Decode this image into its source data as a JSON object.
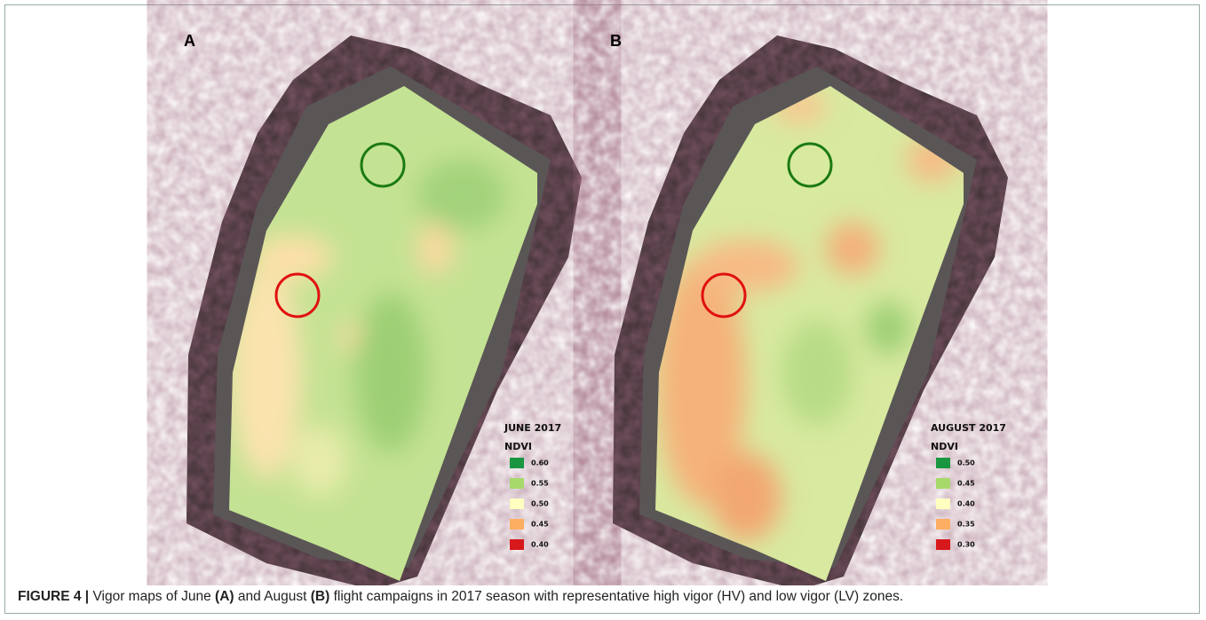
{
  "panels": [
    {
      "label": "A",
      "legend": {
        "title": "JUNE 2017",
        "subtitle": "NDVI",
        "items": [
          {
            "color": "#1a9641",
            "label": "0.60"
          },
          {
            "color": "#a6d96a",
            "label": "0.55"
          },
          {
            "color": "#ffffc0",
            "label": "0.50"
          },
          {
            "color": "#fdae61",
            "label": "0.45"
          },
          {
            "color": "#d7191c",
            "label": "0.40"
          }
        ]
      }
    },
    {
      "label": "B",
      "legend": {
        "title": "AUGUST 2017",
        "subtitle": "NDVI",
        "items": [
          {
            "color": "#1a9641",
            "label": "0.50"
          },
          {
            "color": "#a6d96a",
            "label": "0.45"
          },
          {
            "color": "#ffffc0",
            "label": "0.40"
          },
          {
            "color": "#fdae61",
            "label": "0.35"
          },
          {
            "color": "#d7191c",
            "label": "0.30"
          }
        ]
      }
    }
  ],
  "caption": [
    {
      "text": "FIGURE 4 |",
      "bold": true
    },
    {
      "text": " Vigor maps of June ",
      "bold": false
    },
    {
      "text": "(A)",
      "bold": true
    },
    {
      "text": " and August ",
      "bold": false
    },
    {
      "text": "(B)",
      "bold": true
    },
    {
      "text": " flight campaigns in 2017 season with representative high vigor (HV) and low vigor (LV) zones.",
      "bold": false
    }
  ]
}
